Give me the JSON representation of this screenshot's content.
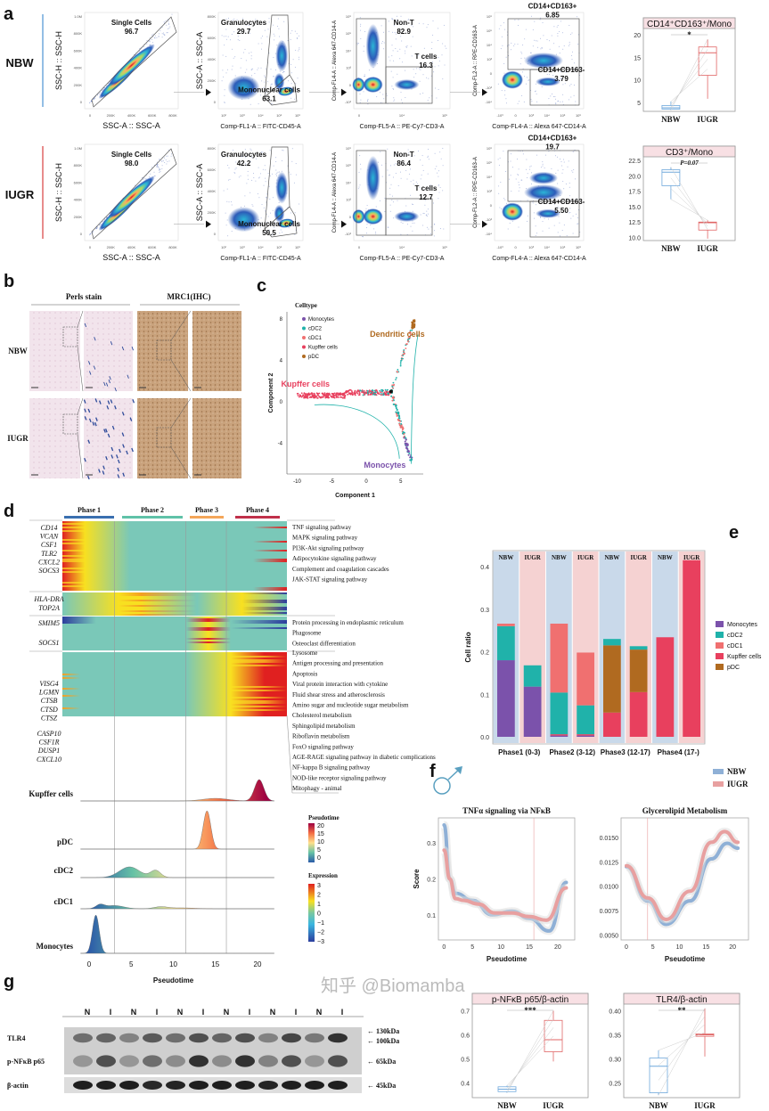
{
  "panel_labels": {
    "a": "a",
    "b": "b",
    "c": "c",
    "d": "d",
    "e": "e",
    "f": "f",
    "g": "g"
  },
  "a": {
    "groups": [
      {
        "name": "NBW",
        "color": "#6fa8dc",
        "plots": [
          {
            "gates": [
              {
                "name": "Single Cells",
                "value": "96.7"
              }
            ]
          },
          {
            "gates": [
              {
                "name": "Granulocytes",
                "value": "29.7"
              },
              {
                "name": "Mononuclear cells",
                "value": "63.1"
              }
            ]
          },
          {
            "gates": [
              {
                "name": "Non-T",
                "value": "82.9"
              },
              {
                "name": "T cells",
                "value": "16.3"
              }
            ]
          },
          {
            "gates": [
              {
                "name": "CD14+CD163+",
                "value": "6.85"
              },
              {
                "name": "CD14+CD163-",
                "value": "3.79"
              }
            ]
          }
        ]
      },
      {
        "name": "IUGR",
        "color": "#e06666",
        "plots": [
          {
            "gates": [
              {
                "name": "Single Cells",
                "value": "98.0"
              }
            ]
          },
          {
            "gates": [
              {
                "name": "Granulocytes",
                "value": "42.2"
              },
              {
                "name": "Mononuclear cells",
                "value": "50.5"
              }
            ]
          },
          {
            "gates": [
              {
                "name": "Non-T",
                "value": "86.4"
              },
              {
                "name": "T cells",
                "value": "12.7"
              }
            ]
          },
          {
            "gates": [
              {
                "name": "CD14+CD163+",
                "value": "19.7"
              },
              {
                "name": "CD14+CD163-",
                "value": "5.50"
              }
            ]
          }
        ]
      }
    ],
    "axes": [
      {
        "x": "SSC-A :: SSC-A",
        "y": "SSC-H :: SSC-H",
        "xticks": [
          "0",
          "200K",
          "400K",
          "600K",
          "800K"
        ],
        "yticks": [
          "0",
          "200K",
          "400K",
          "600K",
          "800K",
          "1.0M"
        ]
      },
      {
        "x": "Comp-FL1-A :: FITC-CD45-A",
        "y": "SSC-A :: SSC-A",
        "xticks": [
          "10²",
          "10³",
          "10⁴",
          "10⁵",
          "10⁶"
        ],
        "yticks": [
          "0",
          "200K",
          "400K",
          "600K",
          "800K"
        ]
      },
      {
        "x": "Comp-FL5-A :: PE-Cy7-CD3-A",
        "y": "Comp-FL4-A :: Alexa 647-CD14-A",
        "xticks": [
          "0",
          "10⁴",
          "10⁵"
        ],
        "yticks": [
          "-10³",
          "0",
          "10³",
          "10⁴",
          "10⁵",
          "10⁶"
        ]
      },
      {
        "x": "Comp-FL4-A :: Alexa 647-CD14-A",
        "y": "Comp-FL2-A :: RPE-CD163-A",
        "xticks": [
          "-10³",
          "0",
          "10³",
          "10⁴",
          "10⁵",
          "10⁶"
        ],
        "yticks": [
          "-10⁴",
          "-10³",
          "0",
          "10³",
          "10⁴",
          "10⁵",
          "10⁶"
        ]
      }
    ]
  },
  "b": {
    "headers": [
      "Perls stain",
      "MRC1(IHC)"
    ],
    "rows": [
      "NBW",
      "IUGR"
    ]
  },
  "c": {
    "legend_title": "Celltype",
    "celltypes": [
      {
        "name": "Monocytes",
        "color": "#7b52ab"
      },
      {
        "name": "cDC2",
        "color": "#20b2aa"
      },
      {
        "name": "cDC1",
        "color": "#f07070"
      },
      {
        "name": "Kupffer cells",
        "color": "#e8405e"
      },
      {
        "name": "pDC",
        "color": "#b06a20"
      }
    ],
    "annotations": [
      {
        "text": "Dendritic cells",
        "color": "#b06a20"
      },
      {
        "text": "Kupffer cells",
        "color": "#e8405e"
      },
      {
        "text": "Monocytes",
        "color": "#7b52ab"
      }
    ],
    "xlabel": "Component 1",
    "ylabel": "Component 2",
    "xticks": [
      "-10",
      "-5",
      "0",
      "5"
    ],
    "yticks": [
      "8",
      "4",
      "0",
      "-4"
    ]
  },
  "d": {
    "phases": [
      {
        "name": "Phase 1",
        "color": "#3a6fb0"
      },
      {
        "name": "Phase 2",
        "color": "#5fc2a8"
      },
      {
        "name": "Phase 3",
        "color": "#f4a65a"
      },
      {
        "name": "Phase 4",
        "color": "#c0304a"
      }
    ],
    "gene_groups": [
      {
        "genes": [
          "CD14",
          "VCAN",
          "CSF1",
          "TLR2",
          "CXCL2",
          "SOCS3"
        ],
        "pathways": [
          "TNF signaling pathway",
          "MAPK signaling pathway",
          "PI3K-Akt signaling pathway",
          "Adipocytokine signaling pathway",
          "Complement and coagulation cascades",
          "JAK-STAT signaling pathway"
        ]
      },
      {
        "genes": [
          "HLA-DRA",
          "TOP2A"
        ],
        "pathways": []
      },
      {
        "genes": [
          "SMIM5",
          "SOCS1"
        ],
        "pathways": [
          "Protein processing in endoplasmic reticulum",
          "Phagosome",
          "Osteoclast differentiation"
        ]
      },
      {
        "genes": [
          "VISG4",
          "LGMN",
          "CTSB",
          "CTSD",
          "CTSZ",
          "CASP10",
          "CSF1R",
          "DUSP1",
          "CXCL10"
        ],
        "pathways": [
          "Lysosome",
          "Antigen processing and presentation",
          "Apoptosis",
          "Viral protein interaction with cytokine",
          "Fluid shear stress and atherosclerosis",
          "Amino sugar and nucleotide sugar metabolism",
          "Cholesterol metabolism",
          "Sphingolipid metabolism",
          "Riboflavin metabolism",
          "FoxO signaling pathway",
          "AGE-RAGE signaling pathway in diabetic complications",
          "NF-kappa B signaling pathway",
          "NOD-like receptor signaling pathway",
          "Mitophagy - animal"
        ]
      }
    ],
    "ridges": [
      {
        "name": "Kupffer cells",
        "peaks": [
          [
            15,
            0.12,
            1.5
          ],
          [
            20.2,
            1,
            0.55
          ]
        ]
      },
      {
        "name": "pDC",
        "peaks": [
          [
            14,
            1,
            0.45
          ]
        ]
      },
      {
        "name": "cDC2",
        "peaks": [
          [
            4.8,
            0.6,
            1.2
          ],
          [
            7.9,
            0.4,
            0.6
          ]
        ]
      },
      {
        "name": "cDC1",
        "peaks": [
          [
            1.3,
            0.35,
            0.5
          ],
          [
            3,
            0.3,
            1.1
          ],
          [
            8.5,
            0.18,
            0.8
          ],
          [
            11,
            0.08,
            1.5
          ]
        ]
      },
      {
        "name": "Monocytes",
        "peaks": [
          [
            0.8,
            1,
            0.4
          ]
        ]
      }
    ],
    "xlabel": "Pseudotime",
    "xticks": [
      "0",
      "5",
      "10",
      "15",
      "20"
    ],
    "phase_boundaries": [
      3,
      11.5,
      16.3
    ],
    "legend_pseudotime": {
      "title": "Pseudotime",
      "ticks": [
        "20",
        "15",
        "10",
        "5",
        "0"
      ]
    },
    "legend_expression": {
      "title": "Expression",
      "ticks": [
        "3",
        "2",
        "1",
        "0",
        "−1",
        "−2",
        "−3"
      ]
    }
  },
  "chart_data": [
    {
      "id": "e",
      "type": "bar",
      "stacked": true,
      "ylabel": "Cell ratio",
      "ylim": [
        0,
        0.43
      ],
      "yticks": [
        "0.0",
        "0.1",
        "0.2",
        "0.3",
        "0.4"
      ],
      "categories": [
        "Phase1 (0-3)",
        "Phase2 (3-12)",
        "Phase3 (12-17)",
        "Phase4 (17-)"
      ],
      "groups": [
        "NBW",
        "IUGR"
      ],
      "group_colors": {
        "NBW": "#c9d9ea",
        "IUGR": "#f5d2d2"
      },
      "bars": [
        {
          "phase": 0,
          "group": "NBW",
          "values": {
            "Monocytes": 0.18,
            "cDC2": 0.08,
            "cDC1": 0.006,
            "Kupffer cells": 0,
            "pDC": 0
          }
        },
        {
          "phase": 0,
          "group": "IUGR",
          "values": {
            "Monocytes": 0.118,
            "cDC2": 0.05,
            "cDC1": 0,
            "Kupffer cells": 0,
            "pDC": 0
          }
        },
        {
          "phase": 1,
          "group": "NBW",
          "values": {
            "Monocytes": 0.003,
            "Kupffer cells": 0.003,
            "cDC2": 0.098,
            "cDC1": 0.162,
            "pDC": 0
          }
        },
        {
          "phase": 1,
          "group": "IUGR",
          "values": {
            "Monocytes": 0.003,
            "Kupffer cells": 0.003,
            "cDC2": 0.068,
            "cDC1": 0.124,
            "pDC": 0
          }
        },
        {
          "phase": 2,
          "group": "NBW",
          "values": {
            "pDC": 0.158,
            "Kupffer cells": 0.057,
            "cDC2": 0.015,
            "Monocytes": 0,
            "cDC1": 0
          }
        },
        {
          "phase": 2,
          "group": "IUGR",
          "values": {
            "pDC": 0.1,
            "Kupffer cells": 0.105,
            "cDC2": 0.008,
            "Monocytes": 0,
            "cDC1": 0
          }
        },
        {
          "phase": 3,
          "group": "NBW",
          "values": {
            "Kupffer cells": 0.234,
            "Monocytes": 0,
            "cDC2": 0,
            "cDC1": 0,
            "pDC": 0
          }
        },
        {
          "phase": 3,
          "group": "IUGR",
          "values": {
            "Kupffer cells": 0.415,
            "Monocytes": 0,
            "cDC2": 0,
            "cDC1": 0,
            "pDC": 0
          }
        }
      ],
      "legend": [
        "Monocytes",
        "cDC2",
        "cDC1",
        "Kupffer cells",
        "pDC"
      ],
      "legend_placement": "right"
    },
    {
      "id": "f1",
      "type": "line",
      "title": "TNFα signaling via NFκB",
      "xlabel": "Pseudotime",
      "ylabel": "Score",
      "xlim": [
        -1,
        23
      ],
      "ylim": [
        0.03,
        0.37
      ],
      "xticks": [
        "0",
        "5",
        "10",
        "15",
        "20"
      ],
      "yticks": [
        "0.1",
        "0.2",
        "0.3"
      ],
      "vline": 15.8,
      "series": [
        {
          "name": "NBW",
          "color": "#8fb0d6",
          "points": [
            [
              0,
              0.35
            ],
            [
              1,
              0.2
            ],
            [
              2,
              0.16
            ],
            [
              5,
              0.14
            ],
            [
              8.5,
              0.1
            ],
            [
              12,
              0.11
            ],
            [
              15,
              0.09
            ],
            [
              18.5,
              0.055
            ],
            [
              21.5,
              0.19
            ]
          ]
        },
        {
          "name": "IUGR",
          "color": "#e8a0a0",
          "points": [
            [
              0,
              0.28
            ],
            [
              1,
              0.2
            ],
            [
              2,
              0.145
            ],
            [
              3.5,
              0.14
            ],
            [
              6,
              0.13
            ],
            [
              9,
              0.105
            ],
            [
              12,
              0.105
            ],
            [
              15,
              0.095
            ],
            [
              18,
              0.085
            ],
            [
              21.5,
              0.175
            ]
          ]
        }
      ]
    },
    {
      "id": "f2",
      "type": "line",
      "title": "Glycerolipid Metabolism",
      "xlabel": "Pseudotime",
      "ylabel": "",
      "xlim": [
        -1,
        23
      ],
      "ylim": [
        0.0045,
        0.017
      ],
      "xticks": [
        "0",
        "5",
        "10",
        "15",
        "20"
      ],
      "yticks": [
        "0.0050",
        "0.0075",
        "0.0100",
        "0.0125",
        "0.0150"
      ],
      "vline": 4,
      "series": [
        {
          "name": "NBW",
          "color": "#8fb0d6",
          "points": [
            [
              0,
              0.012
            ],
            [
              4,
              0.0085
            ],
            [
              7.5,
              0.0061
            ],
            [
              12,
              0.0085
            ],
            [
              16,
              0.0128
            ],
            [
              19,
              0.0144
            ],
            [
              21,
              0.0139
            ]
          ]
        },
        {
          "name": "IUGR",
          "color": "#e8a0a0",
          "points": [
            [
              0,
              0.0121
            ],
            [
              4,
              0.0088
            ],
            [
              7.5,
              0.0066
            ],
            [
              12,
              0.0095
            ],
            [
              16,
              0.0145
            ],
            [
              18.5,
              0.0156
            ],
            [
              21,
              0.0145
            ]
          ]
        }
      ],
      "legend_placement": "top-right"
    },
    {
      "id": "a-box1",
      "type": "box",
      "title": "CD14⁺CD163⁺/Mono",
      "ylim": [
        3,
        21
      ],
      "yticks": [
        "5",
        "10",
        "15",
        "20"
      ],
      "sig": "*",
      "groups": [
        {
          "name": "NBW",
          "min": 3.3,
          "q1": 3.5,
          "median": 3.8,
          "q3": 4.3,
          "max": 5.2
        },
        {
          "name": "IUGR",
          "min": 5.8,
          "q1": 11,
          "median": 16,
          "q3": 17.3,
          "max": 19
        }
      ]
    },
    {
      "id": "a-box2",
      "type": "box",
      "title": "CD3⁺/Mono",
      "ylim": [
        9.5,
        22.8
      ],
      "yticks": [
        "10.0",
        "12.5",
        "15.0",
        "17.5",
        "20.0",
        "22.5"
      ],
      "sig": "P=0.07",
      "groups": [
        {
          "name": "NBW",
          "min": 16.2,
          "q1": 18.4,
          "median": 20.6,
          "q3": 21.0,
          "max": 21.4
        },
        {
          "name": "IUGR",
          "min": 9.8,
          "q1": 11.2,
          "median": 12.4,
          "q3": 12.5,
          "max": 12.8
        }
      ]
    },
    {
      "id": "g-box1",
      "type": "box",
      "title": "p-NFκB p65/β-actin",
      "ylim": [
        0.34,
        0.72
      ],
      "yticks": [
        "0.4",
        "0.5",
        "0.6",
        "0.7"
      ],
      "sig": "***",
      "groups": [
        {
          "name": "NBW",
          "min": 0.36,
          "q1": 0.365,
          "median": 0.375,
          "q3": 0.385,
          "max": 0.39
        },
        {
          "name": "IUGR",
          "min": 0.49,
          "q1": 0.53,
          "median": 0.58,
          "q3": 0.66,
          "max": 0.7
        }
      ]
    },
    {
      "id": "g-box2",
      "type": "box",
      "title": "TLR4/β-actin",
      "ylim": [
        0.22,
        0.41
      ],
      "yticks": [
        "0.25",
        "0.30",
        "0.35",
        "0.40"
      ],
      "sig": "**",
      "groups": [
        {
          "name": "NBW",
          "min": 0.225,
          "q1": 0.23,
          "median": 0.285,
          "q3": 0.302,
          "max": 0.318
        },
        {
          "name": "IUGR",
          "min": 0.305,
          "q1": 0.347,
          "median": 0.35,
          "q3": 0.352,
          "max": 0.405
        }
      ]
    }
  ],
  "g": {
    "lanes": [
      "N",
      "I",
      "N",
      "I",
      "N",
      "I",
      "N",
      "I",
      "N",
      "I",
      "N",
      "I"
    ],
    "blots": [
      {
        "name": "TLR4",
        "markers": [
          "← 130kDa",
          "← 100kDa"
        ],
        "intensity": [
          0.55,
          0.6,
          0.45,
          0.65,
          0.55,
          0.7,
          0.6,
          0.7,
          0.45,
          0.75,
          0.5,
          0.85
        ]
      },
      {
        "name": "p-NFκB p65",
        "markers": [
          "← 65kDa"
        ],
        "intensity": [
          0.35,
          0.7,
          0.35,
          0.55,
          0.4,
          0.85,
          0.4,
          0.85,
          0.45,
          0.7,
          0.35,
          0.7
        ]
      },
      {
        "name": "β-actin",
        "markers": [
          "← 45kDa"
        ],
        "intensity": [
          0.95,
          0.95,
          0.95,
          0.9,
          0.92,
          0.95,
          0.95,
          0.95,
          0.92,
          0.95,
          0.95,
          0.95
        ]
      }
    ]
  },
  "watermark": "知乎 @Biomamba"
}
